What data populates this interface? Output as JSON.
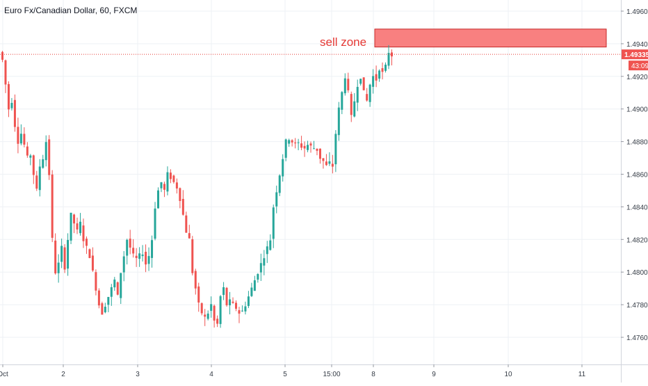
{
  "chart_data": {
    "type": "candlestick",
    "title": "Euro Fx/Canadian Dollar, 60, FXCM",
    "x_tick_labels": [
      "Oct",
      "2",
      "3",
      "4",
      "5",
      "15:00",
      "8",
      "9",
      "10",
      "11"
    ],
    "y_tick_labels": [
      "1.49600",
      "1.49400",
      "1.49200",
      "1.49000",
      "1.48800",
      "1.48600",
      "1.48400",
      "1.48200",
      "1.48000",
      "1.47800",
      "1.47600"
    ],
    "ylim": [
      1.4745,
      1.497
    ],
    "grid": true,
    "colors": {
      "up": "#26a69a",
      "down": "#ef5350",
      "zone_fill": "#f88080",
      "zone_border": "#c62828",
      "price_line": "#e53935",
      "grid": "#eef1f5"
    },
    "current_price": {
      "value": 1.49335,
      "label": "1.49335",
      "countdown": "43:09"
    },
    "annotation": {
      "label": "sell zone",
      "price_top": 1.4949,
      "price_bottom": 1.4938,
      "from": "8",
      "to": "11+"
    },
    "price_path": [
      1.4935,
      1.493,
      1.4915,
      1.49,
      1.4905,
      1.489,
      1.488,
      1.4885,
      1.4878,
      1.487,
      1.4872,
      1.486,
      1.485,
      1.4865,
      1.487,
      1.488,
      1.486,
      1.482,
      1.48,
      1.4805,
      1.4815,
      1.4803,
      1.482,
      1.4835,
      1.483,
      1.4825,
      1.483,
      1.482,
      1.4815,
      1.481,
      1.48,
      1.479,
      1.478,
      1.4775,
      1.478,
      1.4785,
      1.479,
      1.4795,
      1.4785,
      1.48,
      1.481,
      1.482,
      1.4815,
      1.481,
      1.4808,
      1.481,
      1.4812,
      1.4805,
      1.481,
      1.482,
      1.484,
      1.485,
      1.4855,
      1.485,
      1.486,
      1.4858,
      1.4855,
      1.4852,
      1.4845,
      1.4835,
      1.4825,
      1.482,
      1.48,
      1.479,
      1.478,
      1.4775,
      1.4772,
      1.4775,
      1.478,
      1.477,
      1.4768,
      1.4785,
      1.479,
      1.478,
      1.4782,
      1.478,
      1.4778,
      1.4775,
      1.4776,
      1.478,
      1.4785,
      1.479,
      1.4795,
      1.48,
      1.4805,
      1.481,
      1.4815,
      1.482,
      1.484,
      1.485,
      1.486,
      1.487,
      1.488,
      1.4882,
      1.488,
      1.4878,
      1.4879,
      1.4877,
      1.4876,
      1.4878,
      1.4877,
      1.4876,
      1.4875,
      1.487,
      1.4868,
      1.4865,
      1.4867,
      1.4865,
      1.4885,
      1.49,
      1.491,
      1.492,
      1.491,
      1.4895,
      1.4905,
      1.4915,
      1.492,
      1.491,
      1.4905,
      1.4915,
      1.492,
      1.4918,
      1.4925,
      1.4922,
      1.4926,
      1.4935,
      1.4933
    ]
  }
}
